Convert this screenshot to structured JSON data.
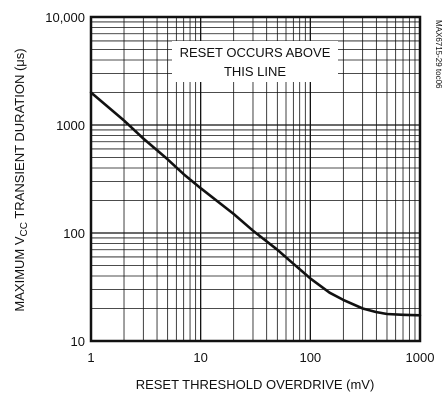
{
  "chart_data": {
    "type": "line",
    "xscale": "log",
    "yscale": "log",
    "xlim": [
      1,
      1000
    ],
    "ylim": [
      10,
      10000
    ],
    "xlabel": "RESET THRESHOLD OVERDRIVE (mV)",
    "ylabel_parts": {
      "pre": "MAXIMUM V",
      "sub": "CC",
      "post": " TRANSIENT DURATION (μs)"
    },
    "x_tick_labels": [
      "1",
      "10",
      "100",
      "1000"
    ],
    "y_tick_labels": [
      "10",
      "100",
      "1000",
      "10,000"
    ],
    "grid": true,
    "annotation_lines": [
      "RESET OCCURS ABOVE",
      "THIS LINE"
    ],
    "side_note": "MAX6715-29 toc06",
    "series": [
      {
        "x": [
          1,
          2,
          3,
          5,
          7,
          10,
          20,
          30,
          50,
          70,
          100,
          150,
          200,
          300,
          400,
          500,
          700,
          1000
        ],
        "y": [
          2000,
          1100,
          750,
          480,
          350,
          260,
          150,
          105,
          70,
          52,
          38,
          28,
          24,
          20,
          18.5,
          17.8,
          17.5,
          17.3
        ]
      }
    ]
  }
}
